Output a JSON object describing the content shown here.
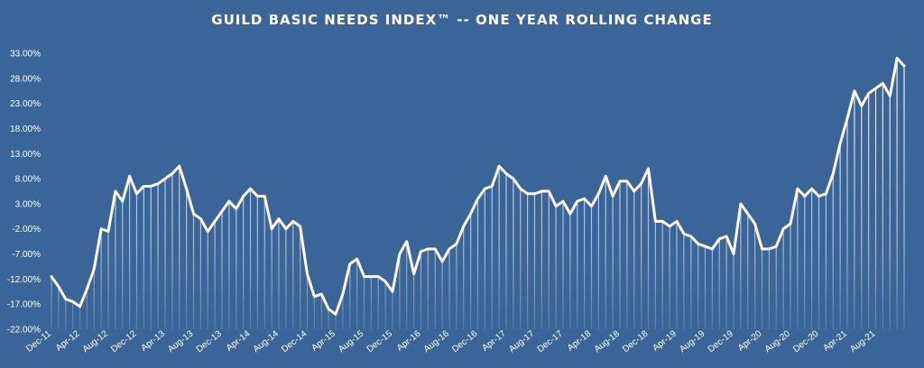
{
  "chart_data": {
    "type": "area",
    "title": "GUILD BASIC NEEDS INDEX™ -- ONE YEAR ROLLING CHANGE",
    "xlabel": "",
    "ylabel": "",
    "ylim": [
      -22.0,
      33.0
    ],
    "y_ticks": [
      "33.00%",
      "28.00%",
      "23.00%",
      "18.00%",
      "13.00%",
      "8.00%",
      "3.00%",
      "-2.00%",
      "-7.00%",
      "-12.00%",
      "-17.00%",
      "-22.00%"
    ],
    "y_tick_values": [
      33,
      28,
      23,
      18,
      13,
      8,
      3,
      -2,
      -7,
      -12,
      -17,
      -22
    ],
    "x_tick_labels": [
      "Dec-11",
      "Apr-12",
      "Aug-12",
      "Dec-12",
      "Apr-13",
      "Aug-13",
      "Dec-13",
      "Apr-14",
      "Aug-14",
      "Dec-14",
      "Apr-15",
      "Aug-15",
      "Dec-15",
      "Apr-16",
      "Aug-16",
      "Dec-16",
      "Apr-17",
      "Aug-17",
      "Dec-17",
      "Apr-18",
      "Aug-18",
      "Dec-18",
      "Apr-19",
      "Aug-19",
      "Dec-19",
      "Apr-20",
      "Aug-20",
      "Dec-20",
      "Apr-21",
      "Aug-21"
    ],
    "x_tick_index": [
      0,
      4,
      8,
      12,
      16,
      20,
      24,
      28,
      32,
      36,
      40,
      44,
      48,
      52,
      56,
      60,
      64,
      68,
      72,
      76,
      80,
      84,
      88,
      92,
      96,
      100,
      104,
      108,
      112,
      116
    ],
    "series": [
      {
        "values": [
          -11.5,
          -13.5,
          -16.0,
          -16.5,
          -17.5,
          -14.0,
          -10.0,
          -2.0,
          -2.5,
          5.5,
          3.5,
          8.5,
          5.0,
          6.5,
          6.5,
          7.0,
          8.0,
          9.0,
          10.5,
          6.0,
          1.0,
          0.0,
          -2.5,
          -0.5,
          1.5,
          3.5,
          2.0,
          4.5,
          6.0,
          4.5,
          4.5,
          -2.0,
          0.0,
          -2.0,
          -0.5,
          -1.5,
          -11.0,
          -15.5,
          -15.0,
          -18.0,
          -19.0,
          -15.0,
          -9.0,
          -8.0,
          -11.5,
          -11.5,
          -11.5,
          -12.5,
          -14.5,
          -7.0,
          -4.5,
          -11.0,
          -6.5,
          -6.0,
          -6.0,
          -8.5,
          -6.0,
          -5.0,
          -1.5,
          1.0,
          4.0,
          6.0,
          6.5,
          10.5,
          9.0,
          8.0,
          6.0,
          5.0,
          5.0,
          5.5,
          5.5,
          2.5,
          3.5,
          1.0,
          3.5,
          4.0,
          2.5,
          5.0,
          8.5,
          4.5,
          7.5,
          7.5,
          5.5,
          7.0,
          10.0,
          -0.5,
          -0.5,
          -1.5,
          -0.5,
          -3.0,
          -3.5,
          -5.0,
          -5.5,
          -6.0,
          -4.0,
          -3.5,
          -7.0,
          3.0,
          1.0,
          -1.0,
          -6.0,
          -6.0,
          -5.5,
          -2.0,
          -1.0,
          6.0,
          4.5,
          6.0,
          4.5,
          5.0,
          9.0,
          15.0,
          20.0,
          25.5,
          22.5,
          25.0,
          26.0,
          27.0,
          24.5,
          32.0,
          30.5
        ]
      }
    ]
  }
}
